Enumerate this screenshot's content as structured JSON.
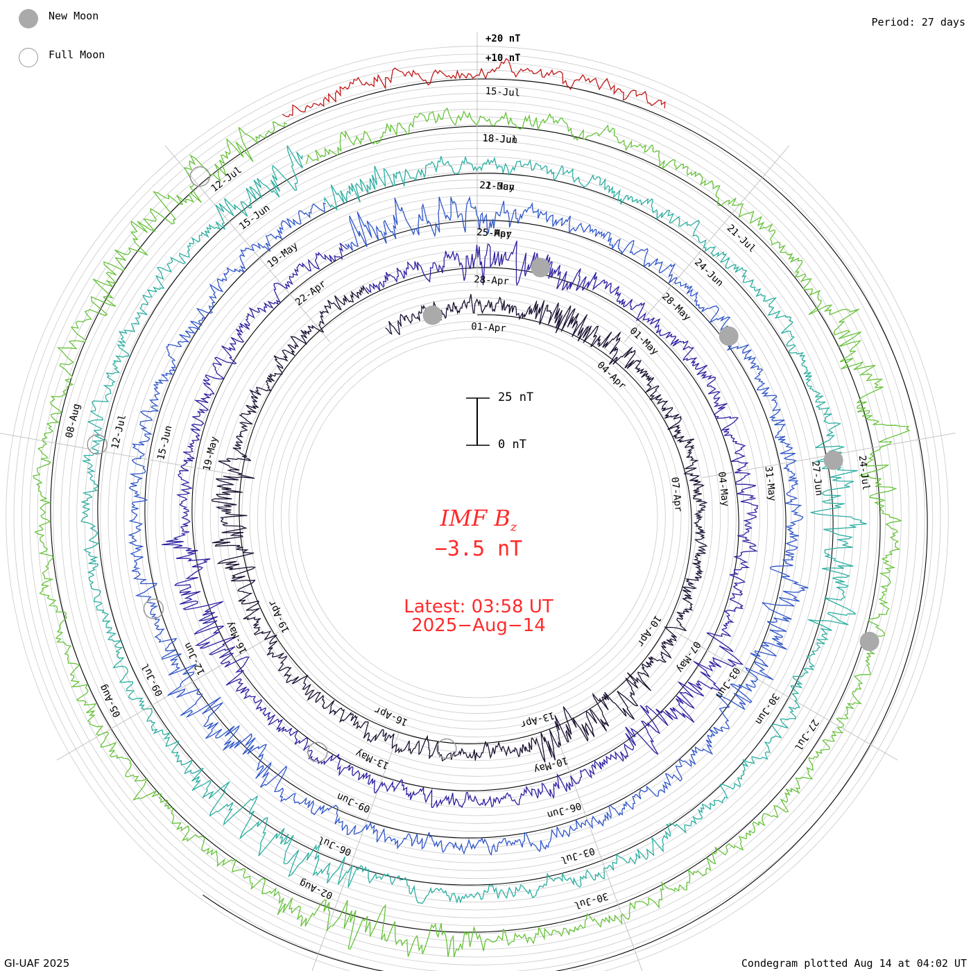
{
  "legend": {
    "new_moon": "New Moon",
    "full_moon": "Full Moon",
    "new_moon_color": "#aaaaaa",
    "full_moon_color": "#999999"
  },
  "period_label": "Period: 27 days",
  "ring_labels": {
    "plus20": "+20 nT",
    "plus10": "+10 nT"
  },
  "scale_bar": {
    "top_label": "25 nT",
    "bottom_label": "0 nT"
  },
  "center": {
    "quantity": "IMF B",
    "subscript": "z",
    "value": "−3.5 nT",
    "latest_time": "Latest: 03:58 UT",
    "latest_date": "2025−Aug−14",
    "text_color": "#ff2a2a"
  },
  "footer": {
    "credit": "GI-UAF 2025",
    "plotted": "Condegram plotted Aug 14 at 04:02 UT"
  },
  "chart_data": {
    "type": "line",
    "subtype": "condegram-spiral",
    "title": "IMF Bz",
    "units": "nT",
    "period_days": 27,
    "latest_value": -3.5,
    "rotations": [
      {
        "name": "rotation-1",
        "color": "#1a1030",
        "start_date": "2025-03-28",
        "labels": [
          "01-Apr",
          "04-Apr",
          "07-Apr",
          "10-Apr",
          "13-Apr",
          "16-Apr",
          "19-Apr"
        ]
      },
      {
        "name": "rotation-2",
        "color": "#2c1fa0",
        "start_date": "2025-04-24",
        "labels": [
          "28-Apr",
          "01-May",
          "04-May",
          "07-May",
          "10-May",
          "13-May",
          "16-May",
          "19-May",
          "22-Apr",
          "25-Apr"
        ]
      },
      {
        "name": "rotation-3",
        "color": "#2e55c8",
        "start_date": "2025-05-21",
        "labels": [
          "25-May",
          "28-May",
          "31-May",
          "03-Jun",
          "06-Jun",
          "09-Jun",
          "12-Jun",
          "15-Jun",
          "19-May",
          "22-May"
        ]
      },
      {
        "name": "rotation-4",
        "color": "#2aaea0",
        "start_date": "2025-06-17",
        "labels": [
          "21-Jun",
          "24-Jun",
          "27-Jun",
          "30-Jun",
          "03-Jul",
          "06-Jul",
          "09-Jul",
          "12-Jul",
          "15-Jun",
          "18-Jun"
        ]
      },
      {
        "name": "rotation-5",
        "color": "#66c23a",
        "start_date": "2025-07-14",
        "labels": [
          "18-Jul",
          "21-Jul",
          "24-Jul",
          "27-Jul",
          "30-Jul",
          "02-Aug",
          "05-Aug",
          "08-Aug",
          "12-Jul",
          "15-Jul"
        ]
      },
      {
        "name": "rotation-6",
        "color": "#c01818",
        "start_date": "2025-08-10",
        "labels": []
      }
    ],
    "new_moon_dates": [
      "2025-03-29",
      "2025-04-27",
      "2025-05-27",
      "2025-06-25",
      "2025-07-24"
    ],
    "full_moon_dates": [
      "2025-04-13",
      "2025-05-12",
      "2025-06-11",
      "2025-07-10",
      "2025-08-09"
    ]
  }
}
